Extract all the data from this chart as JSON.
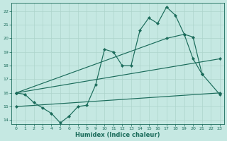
{
  "xlabel": "Humidex (Indice chaleur)",
  "background_color": "#c5e8e2",
  "grid_color": "#aed4cc",
  "line_color": "#1a6b5a",
  "xlim": [
    -0.5,
    23.5
  ],
  "ylim": [
    13.7,
    22.6
  ],
  "xticks": [
    0,
    1,
    2,
    3,
    4,
    5,
    6,
    7,
    8,
    9,
    10,
    11,
    12,
    13,
    14,
    15,
    16,
    17,
    18,
    19,
    20,
    21,
    22,
    23
  ],
  "yticks": [
    14,
    15,
    16,
    17,
    18,
    19,
    20,
    21,
    22
  ],
  "line1_x": [
    0,
    1,
    2,
    3,
    4,
    5,
    6,
    7,
    8,
    9,
    10,
    11,
    12,
    13,
    14,
    15,
    16,
    17,
    18,
    19,
    20,
    21
  ],
  "line1_y": [
    16.0,
    15.9,
    15.3,
    14.9,
    14.5,
    13.8,
    14.3,
    15.0,
    15.1,
    16.6,
    19.2,
    19.0,
    18.0,
    18.0,
    20.6,
    21.5,
    21.1,
    22.3,
    21.7,
    20.3,
    18.5,
    17.4
  ],
  "line2_x": [
    0,
    17,
    19,
    20,
    21,
    23
  ],
  "line2_y": [
    16.0,
    20.0,
    20.3,
    20.1,
    17.4,
    15.9
  ],
  "line3_x": [
    0,
    23
  ],
  "line3_y": [
    16.0,
    18.5
  ],
  "line4_x": [
    0,
    23
  ],
  "line4_y": [
    15.0,
    16.0
  ]
}
